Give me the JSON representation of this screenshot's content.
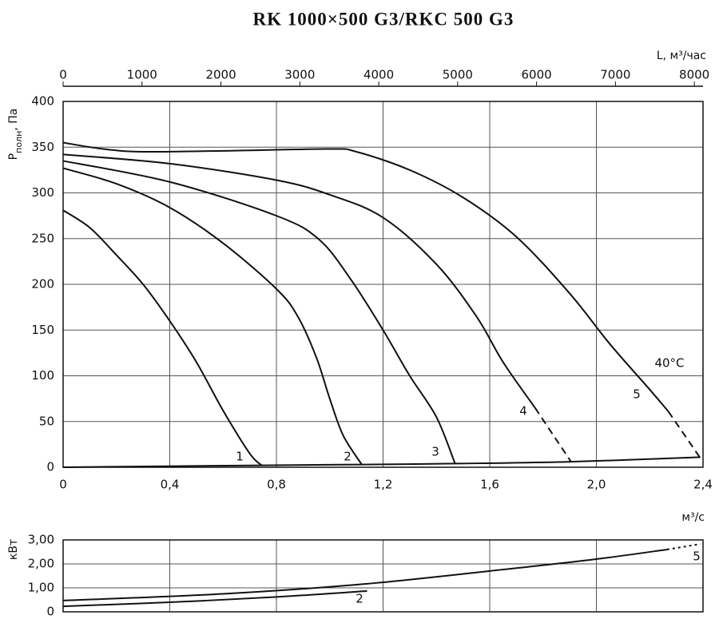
{
  "chart_data": [
    {
      "type": "line",
      "title": "RK 1000×500 G3/RKC 500 G3",
      "x2label": "L, м³/час",
      "x2lim": [
        0,
        8110
      ],
      "x2ticks": [
        0,
        1000,
        2000,
        3000,
        4000,
        5000,
        6000,
        7000,
        8000
      ],
      "xlabel": "м³/с",
      "xlim": [
        0,
        2.4
      ],
      "xticks": [
        0,
        {
          "value": 0.4,
          "label": "0,4"
        },
        {
          "value": 0.8,
          "label": "0,8"
        },
        {
          "value": 1.2,
          "label": "1,2"
        },
        {
          "value": 1.6,
          "label": "1,6"
        },
        {
          "value": 2.0,
          "label": "2,0"
        },
        {
          "value": 2.4,
          "label": "2,4"
        }
      ],
      "ylabel": {
        "symbol": "P",
        "sub": "полн",
        "unit": ", Па"
      },
      "ylim": [
        0,
        400
      ],
      "yticks": [
        0,
        50,
        100,
        150,
        200,
        250,
        300,
        350,
        400
      ],
      "grid": true,
      "annotation": "40°C",
      "series": [
        {
          "name": "1",
          "color": "#111111",
          "x": [
            0,
            0.1,
            0.2,
            0.3,
            0.4,
            0.5,
            0.6,
            0.7,
            0.745
          ],
          "values": [
            281,
            262,
            232,
            200,
            160,
            115,
            62,
            15,
            2
          ]
        },
        {
          "name": "2",
          "color": "#111111",
          "x": [
            0,
            0.2,
            0.4,
            0.6,
            0.8,
            0.88,
            0.95,
            1.0,
            1.05,
            1.12
          ],
          "values": [
            327,
            310,
            284,
            245,
            195,
            165,
            120,
            75,
            35,
            3
          ]
        },
        {
          "name": "3",
          "color": "#111111",
          "x": [
            0,
            0.4,
            0.8,
            0.96,
            1.08,
            1.2,
            1.3,
            1.4,
            1.47
          ],
          "values": [
            335,
            312,
            275,
            249,
            205,
            150,
            100,
            55,
            4
          ]
        },
        {
          "name": "4",
          "color": "#111111",
          "x": [
            0,
            0.4,
            0.8,
            1.0,
            1.2,
            1.4,
            1.55,
            1.65,
            1.77
          ],
          "values": [
            342,
            332,
            314,
            298,
            273,
            222,
            165,
            115,
            65
          ],
          "extension": {
            "x": [
              1.77,
              1.905
            ],
            "values": [
              65,
              6
            ]
          }
        },
        {
          "name": "5",
          "color": "#111111",
          "x": [
            0,
            0.15,
            0.3,
            0.6,
            1.0,
            1.1,
            1.3,
            1.5,
            1.7,
            1.9,
            2.05,
            2.2,
            2.27
          ],
          "values": [
            355,
            348,
            345,
            346,
            348,
            345,
            325,
            295,
            252,
            190,
            135,
            85,
            61
          ],
          "extension": {
            "x": [
              2.27,
              2.39
            ],
            "values": [
              61,
              10
            ]
          }
        }
      ],
      "system_curve": {
        "x": [
          0,
          0.7,
          1.12,
          1.47,
          1.9,
          2.39
        ],
        "values": [
          0,
          2,
          3,
          4,
          6,
          11
        ]
      }
    },
    {
      "type": "line",
      "ylabel": "кВт",
      "xlim": [
        0,
        2.4
      ],
      "xticks": [
        0.4,
        0.8,
        1.2,
        1.6,
        2.0
      ],
      "ylim": [
        0,
        3
      ],
      "yticks": [
        0,
        {
          "value": 1,
          "label": "1,00"
        },
        {
          "value": 2,
          "label": "2,00"
        },
        {
          "value": 3,
          "label": "3,00"
        }
      ],
      "grid": true,
      "series": [
        {
          "name": "2",
          "color": "#111111",
          "x": [
            0,
            0.4,
            0.8,
            1.14
          ],
          "values": [
            0.23,
            0.4,
            0.62,
            0.87
          ]
        },
        {
          "name": "5",
          "color": "#111111",
          "x": [
            0,
            0.6,
            1.14,
            1.68,
            2.0,
            2.265
          ],
          "values": [
            0.47,
            0.75,
            1.17,
            1.8,
            2.2,
            2.6
          ],
          "extension": {
            "x": [
              2.265,
              2.39
            ],
            "values": [
              2.6,
              2.83
            ]
          }
        }
      ]
    }
  ]
}
